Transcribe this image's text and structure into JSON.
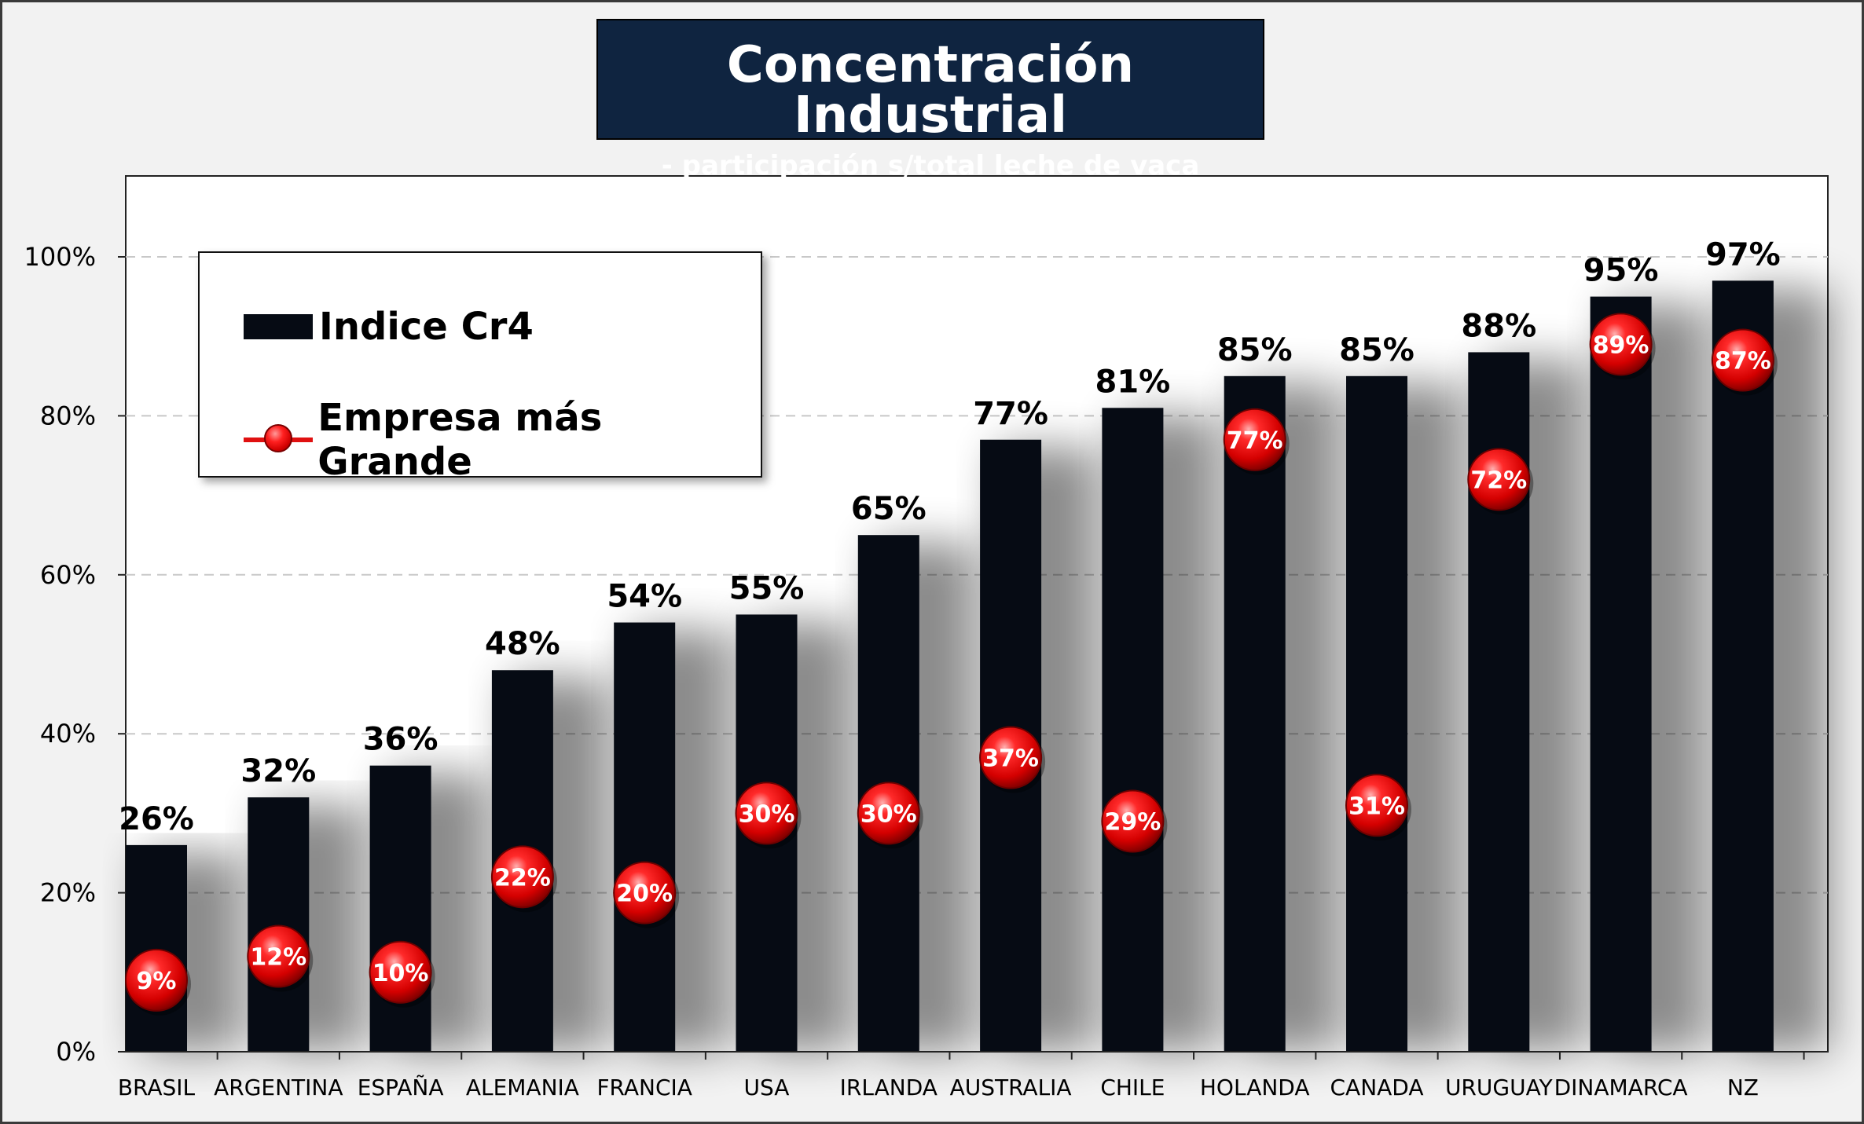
{
  "chart_data": {
    "type": "bar",
    "title": "Concentración Industrial",
    "subtitle": "- participación s/total leche de vaca procesada -",
    "categories": [
      "BRASIL",
      "ARGENTINA",
      "ESPAÑA",
      "ALEMANIA",
      "FRANCIA",
      "USA",
      "IRLANDA",
      "AUSTRALIA",
      "CHILE",
      "HOLANDA",
      "CANADA",
      "URUGUAY",
      "DINAMARCA",
      "NZ"
    ],
    "series": [
      {
        "name": "Indice Cr4",
        "type": "bar",
        "values": [
          26,
          32,
          36,
          48,
          54,
          55,
          65,
          77,
          81,
          85,
          85,
          88,
          95,
          97
        ],
        "labels": [
          "26%",
          "32%",
          "36%",
          "48%",
          "54%",
          "55%",
          "65%",
          "77%",
          "81%",
          "85%",
          "85%",
          "88%",
          "95%",
          "97%"
        ],
        "color": "#060b14"
      },
      {
        "name": "Empresa más Grande",
        "type": "marker",
        "values": [
          9,
          12,
          10,
          22,
          20,
          30,
          30,
          37,
          29,
          77,
          31,
          72,
          89,
          87
        ],
        "labels": [
          "9%",
          "12%",
          "10%",
          "22%",
          "20%",
          "30%",
          "30%",
          "37%",
          "29%",
          "77%",
          "31%",
          "72%",
          "89%",
          "87%"
        ],
        "color": "#e01010"
      }
    ],
    "yticks": [
      "0%",
      "20%",
      "40%",
      "60%",
      "80%",
      "100%"
    ],
    "ylim": [
      0,
      110
    ],
    "grid": true,
    "legend": "top-left"
  }
}
